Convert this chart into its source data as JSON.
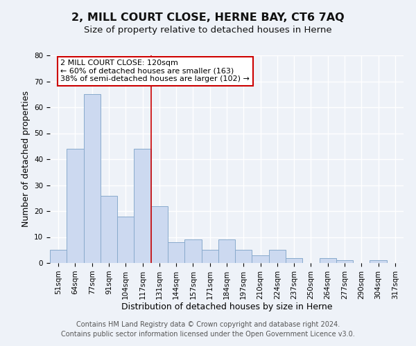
{
  "title": "2, MILL COURT CLOSE, HERNE BAY, CT6 7AQ",
  "subtitle": "Size of property relative to detached houses in Herne",
  "xlabel": "Distribution of detached houses by size in Herne",
  "ylabel": "Number of detached properties",
  "bar_color": "#ccd9f0",
  "bar_edgecolor": "#88aacc",
  "bar_linewidth": 0.7,
  "categories": [
    "51sqm",
    "64sqm",
    "77sqm",
    "91sqm",
    "104sqm",
    "117sqm",
    "131sqm",
    "144sqm",
    "157sqm",
    "171sqm",
    "184sqm",
    "197sqm",
    "210sqm",
    "224sqm",
    "237sqm",
    "250sqm",
    "264sqm",
    "277sqm",
    "290sqm",
    "304sqm",
    "317sqm"
  ],
  "values": [
    5,
    44,
    65,
    26,
    18,
    44,
    22,
    8,
    9,
    5,
    9,
    5,
    3,
    5,
    2,
    0,
    2,
    1,
    0,
    1,
    0
  ],
  "ylim": [
    0,
    80
  ],
  "yticks": [
    0,
    10,
    20,
    30,
    40,
    50,
    60,
    70,
    80
  ],
  "vline_index": 5.5,
  "vline_color": "#cc0000",
  "annotation_title": "2 MILL COURT CLOSE: 120sqm",
  "annotation_line1": "← 60% of detached houses are smaller (163)",
  "annotation_line2": "38% of semi-detached houses are larger (102) →",
  "annotation_box_facecolor": "#ffffff",
  "annotation_box_edgecolor": "#cc0000",
  "footer1": "Contains HM Land Registry data © Crown copyright and database right 2024.",
  "footer2": "Contains public sector information licensed under the Open Government Licence v3.0.",
  "background_color": "#eef2f8",
  "grid_color": "#ffffff",
  "title_fontsize": 11.5,
  "subtitle_fontsize": 9.5,
  "label_fontsize": 9,
  "tick_fontsize": 7.5,
  "annotation_fontsize": 8,
  "footer_fontsize": 7
}
